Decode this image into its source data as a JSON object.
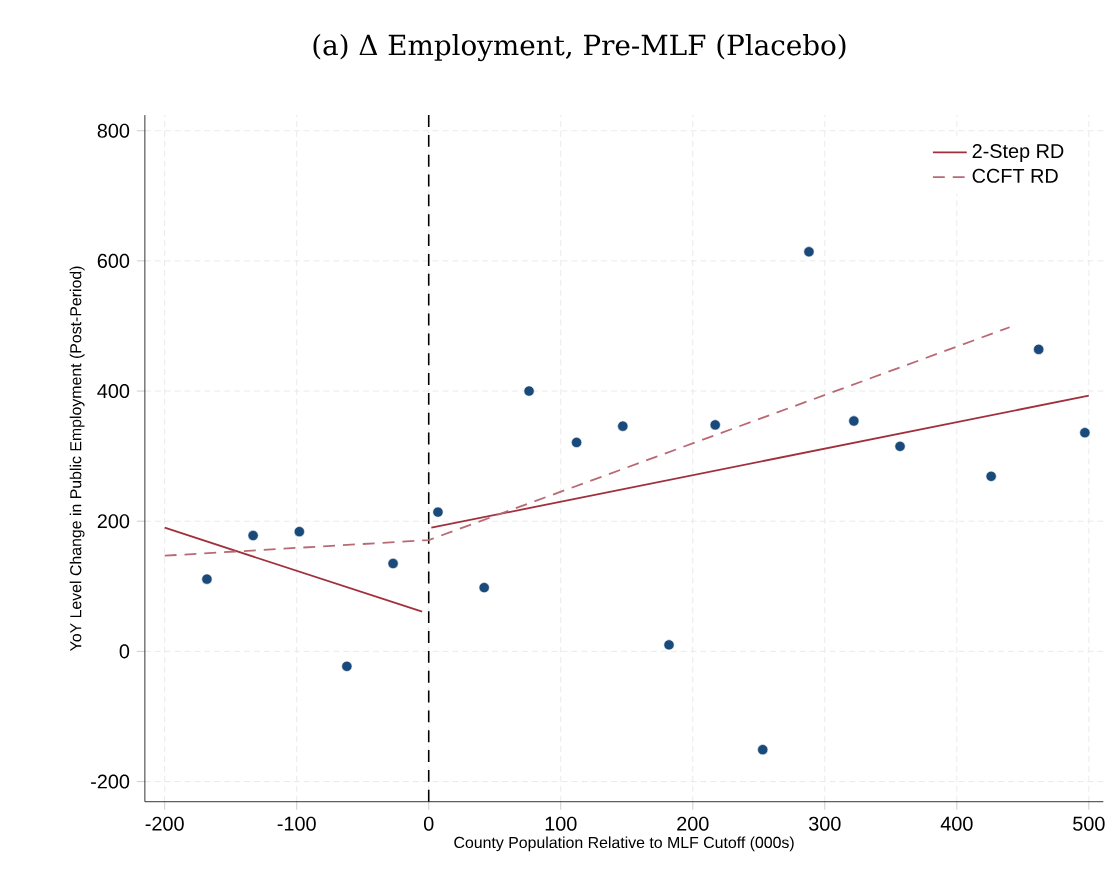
{
  "chart_data": {
    "type": "scatter",
    "title": "(a) Δ Employment, Pre-MLF (Placebo)",
    "xlabel": "County Population Relative to MLF Cutoff (000s)",
    "ylabel": "YoY Level Change in Public Employment (Post-Period)",
    "series": [
      {
        "marker": "circle",
        "color": "#1a4a7a",
        "x": [
          -168,
          -133,
          -98,
          -62,
          -27,
          7,
          42,
          76,
          112,
          147,
          182,
          217,
          253,
          288,
          322,
          357,
          426,
          462,
          497
        ],
        "values": [
          111,
          178,
          184,
          -23,
          135,
          214,
          98,
          400,
          321,
          346,
          10,
          348,
          -151,
          614,
          354,
          315,
          269,
          464,
          336
        ]
      },
      {
        "type": "line",
        "marker": "none",
        "name": "2-Step RD",
        "color": "#a0303c",
        "line_style": "solid",
        "x": [
          -200,
          -5,
          null,
          2,
          500
        ],
        "values": [
          190,
          61,
          null,
          190,
          393
        ]
      },
      {
        "type": "line",
        "marker": "none",
        "name": "CCFT RD",
        "color": "#b86a74",
        "line_style": "dashed",
        "x": [
          -200,
          0,
          440
        ],
        "values": [
          147,
          171,
          498
        ]
      }
    ],
    "xlim": [
      -215,
      511
    ],
    "ylim": [
      -231,
      824
    ],
    "xticks": [
      -200,
      -100,
      0,
      100,
      200,
      300,
      400,
      500
    ],
    "yticks": [
      -200,
      0,
      200,
      400,
      600,
      800
    ],
    "ref_lines": [
      {
        "axis": "x",
        "value": 0,
        "color": "#000000",
        "line_style": "dashed"
      }
    ],
    "grid": true,
    "legend": "top right"
  }
}
